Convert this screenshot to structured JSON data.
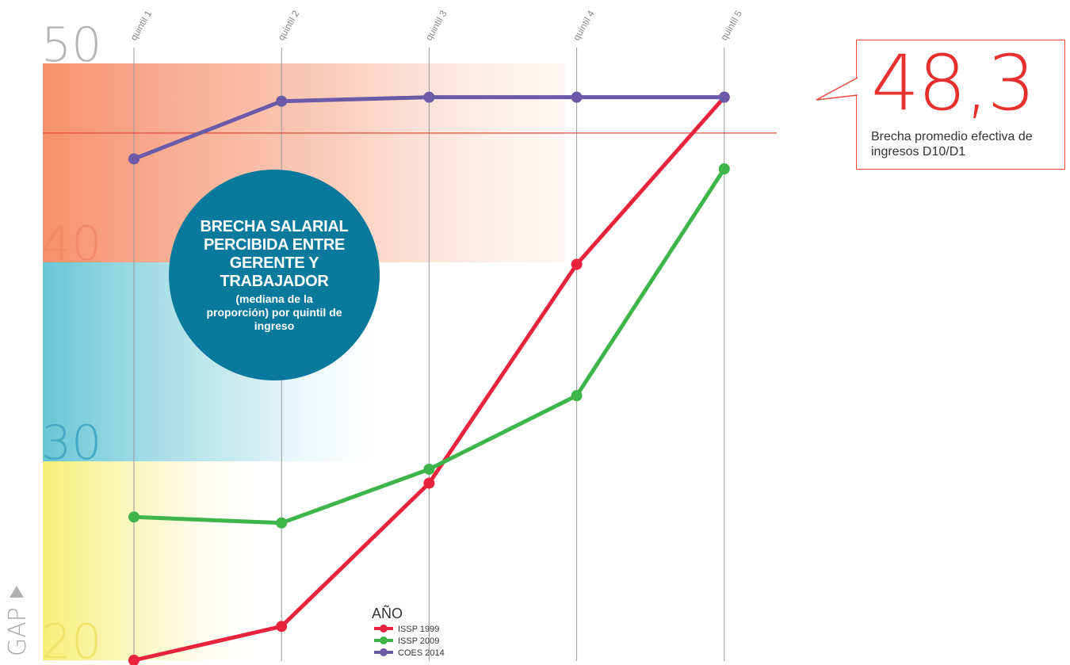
{
  "chart_data": {
    "type": "line",
    "title": "BRECHA SALARIAL PERCIBIDA ENTRE GERENTE Y TRABAJADOR",
    "subtitle": "(mediana de la proporción) por quintil de ingreso",
    "ylabel": "GAP",
    "ylim": [
      20,
      50
    ],
    "yticks": [
      "20",
      "30",
      "40",
      "50"
    ],
    "categories": [
      "quintil 1",
      "quintil 2",
      "quintil 3",
      "quintil 4",
      "quintil 5"
    ],
    "legend_title": "AÑO",
    "series": [
      {
        "name": "ISSP 1999",
        "color": "#e8233d",
        "values": [
          20.0,
          21.7,
          28.9,
          39.9,
          48.3
        ]
      },
      {
        "name": "ISSP 2009",
        "color": "#3db54a",
        "values": [
          27.2,
          26.9,
          29.6,
          33.3,
          44.7
        ]
      },
      {
        "name": "COES 2014",
        "color": "#6a5aa8",
        "values": [
          45.2,
          48.1,
          48.3,
          48.3,
          48.3
        ]
      }
    ],
    "reference_line": {
      "value": 48.3,
      "color": "#e84b3a"
    },
    "annotation": {
      "value": "48,3",
      "text": "Brecha promedio efectiva de ingresos D10/D1"
    },
    "bands": [
      {
        "from": 40,
        "to": 50,
        "color": "#f58a65"
      },
      {
        "from": 30,
        "to": 40,
        "color": "#6cc9d6"
      },
      {
        "from": 20,
        "to": 30,
        "color": "#f6ef7c"
      }
    ],
    "tick_colors": {
      "50": "#b5b5b5",
      "40": "#f28a6a",
      "30": "#45a9c4",
      "20": "#f0e36a"
    }
  }
}
